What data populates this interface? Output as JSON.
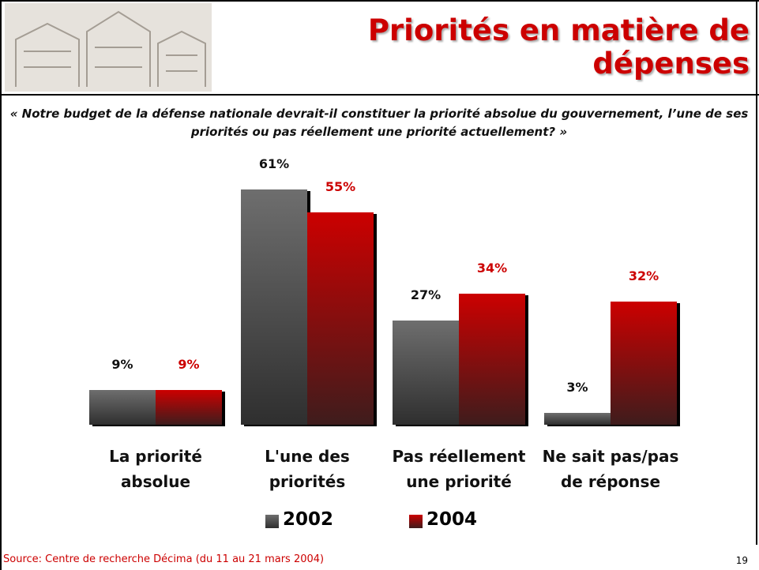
{
  "chart_data": {
    "type": "bar",
    "title": "Priorités en matière de dépenses",
    "subtitle": "« Notre budget de la défense nationale devrait-il constituer la priorité absolue du gouvernement, l’une de ses priorités ou pas réellement une priorité actuellement? »",
    "categories": [
      "La priorité absolue",
      "L'une des priorités",
      "Pas réellement une priorité",
      "Ne sait pas/pas de réponse"
    ],
    "series": [
      {
        "name": "2002",
        "color": "#6e6e6e",
        "values": [
          9,
          61,
          27,
          3
        ],
        "value_labels": [
          "9%",
          "61%",
          "27%",
          "3%"
        ]
      },
      {
        "name": "2004",
        "color": "#cc0000",
        "values": [
          9,
          55,
          34,
          32
        ],
        "value_labels": [
          "9%",
          "55%",
          "34%",
          "32%"
        ]
      }
    ],
    "source": "Source: Centre de recherche Décima (du 11 au 21 mars 2004)",
    "page_number": "19"
  }
}
